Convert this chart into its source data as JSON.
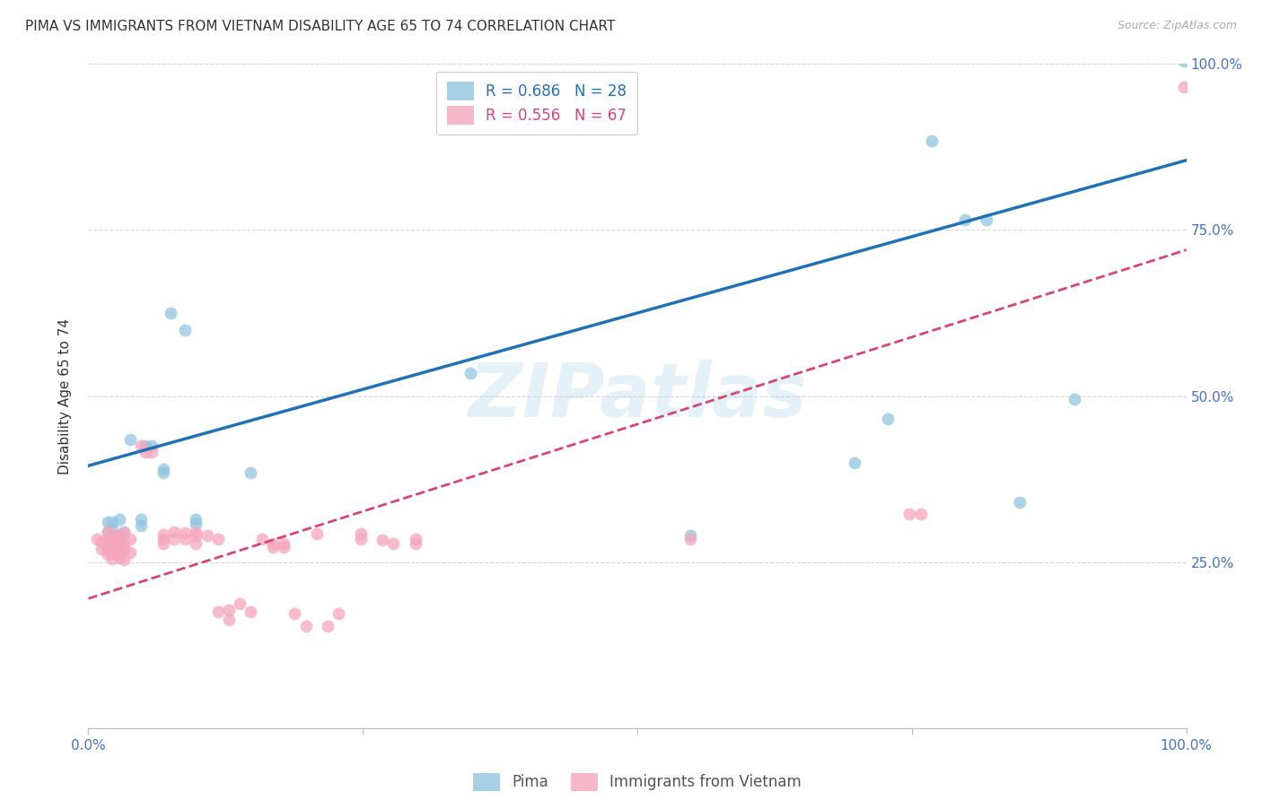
{
  "title": "PIMA VS IMMIGRANTS FROM VIETNAM DISABILITY AGE 65 TO 74 CORRELATION CHART",
  "source": "Source: ZipAtlas.com",
  "ylabel": "Disability Age 65 to 74",
  "xlim": [
    0.0,
    1.0
  ],
  "ylim": [
    0.0,
    1.0
  ],
  "watermark": "ZIPatlas",
  "legend_blue_r": "R = 0.686",
  "legend_blue_n": "N = 28",
  "legend_pink_r": "R = 0.556",
  "legend_pink_n": "N = 67",
  "pima_color": "#92c5de",
  "vietnam_color": "#f4a6bc",
  "pima_line_color": "#2171b5",
  "vietnam_line_color": "#d6457a",
  "pima_line": {
    "x0": 0.0,
    "y0": 0.395,
    "x1": 1.0,
    "y1": 0.855
  },
  "vietnam_line": {
    "x0": 0.0,
    "y0": 0.195,
    "x1": 1.0,
    "y1": 0.72
  },
  "pima_scatter": [
    [
      0.018,
      0.31
    ],
    [
      0.018,
      0.295
    ],
    [
      0.022,
      0.31
    ],
    [
      0.022,
      0.3
    ],
    [
      0.028,
      0.315
    ],
    [
      0.032,
      0.295
    ],
    [
      0.038,
      0.435
    ],
    [
      0.048,
      0.315
    ],
    [
      0.048,
      0.305
    ],
    [
      0.052,
      0.425
    ],
    [
      0.058,
      0.425
    ],
    [
      0.068,
      0.39
    ],
    [
      0.068,
      0.385
    ],
    [
      0.075,
      0.625
    ],
    [
      0.088,
      0.6
    ],
    [
      0.098,
      0.315
    ],
    [
      0.098,
      0.308
    ],
    [
      0.148,
      0.385
    ],
    [
      0.348,
      0.535
    ],
    [
      0.548,
      0.29
    ],
    [
      0.698,
      0.4
    ],
    [
      0.728,
      0.465
    ],
    [
      0.768,
      0.885
    ],
    [
      0.798,
      0.765
    ],
    [
      0.818,
      0.765
    ],
    [
      0.848,
      0.34
    ],
    [
      0.898,
      0.495
    ],
    [
      0.998,
      1.005
    ]
  ],
  "vietnam_scatter": [
    [
      0.008,
      0.285
    ],
    [
      0.012,
      0.28
    ],
    [
      0.012,
      0.27
    ],
    [
      0.018,
      0.295
    ],
    [
      0.018,
      0.285
    ],
    [
      0.018,
      0.278
    ],
    [
      0.018,
      0.272
    ],
    [
      0.018,
      0.268
    ],
    [
      0.018,
      0.262
    ],
    [
      0.022,
      0.292
    ],
    [
      0.022,
      0.285
    ],
    [
      0.022,
      0.278
    ],
    [
      0.022,
      0.272
    ],
    [
      0.022,
      0.263
    ],
    [
      0.022,
      0.255
    ],
    [
      0.028,
      0.29
    ],
    [
      0.028,
      0.284
    ],
    [
      0.028,
      0.278
    ],
    [
      0.028,
      0.272
    ],
    [
      0.028,
      0.264
    ],
    [
      0.028,
      0.256
    ],
    [
      0.032,
      0.294
    ],
    [
      0.032,
      0.278
    ],
    [
      0.032,
      0.268
    ],
    [
      0.032,
      0.254
    ],
    [
      0.038,
      0.284
    ],
    [
      0.038,
      0.264
    ],
    [
      0.048,
      0.425
    ],
    [
      0.052,
      0.415
    ],
    [
      0.058,
      0.415
    ],
    [
      0.068,
      0.292
    ],
    [
      0.068,
      0.285
    ],
    [
      0.068,
      0.278
    ],
    [
      0.078,
      0.295
    ],
    [
      0.078,
      0.284
    ],
    [
      0.088,
      0.294
    ],
    [
      0.088,
      0.284
    ],
    [
      0.098,
      0.295
    ],
    [
      0.098,
      0.29
    ],
    [
      0.098,
      0.278
    ],
    [
      0.108,
      0.29
    ],
    [
      0.118,
      0.284
    ],
    [
      0.118,
      0.175
    ],
    [
      0.128,
      0.178
    ],
    [
      0.128,
      0.163
    ],
    [
      0.138,
      0.188
    ],
    [
      0.148,
      0.175
    ],
    [
      0.158,
      0.284
    ],
    [
      0.168,
      0.278
    ],
    [
      0.168,
      0.273
    ],
    [
      0.178,
      0.278
    ],
    [
      0.178,
      0.273
    ],
    [
      0.188,
      0.173
    ],
    [
      0.198,
      0.153
    ],
    [
      0.208,
      0.293
    ],
    [
      0.218,
      0.153
    ],
    [
      0.228,
      0.173
    ],
    [
      0.248,
      0.293
    ],
    [
      0.248,
      0.284
    ],
    [
      0.268,
      0.283
    ],
    [
      0.278,
      0.278
    ],
    [
      0.298,
      0.284
    ],
    [
      0.298,
      0.278
    ],
    [
      0.548,
      0.285
    ],
    [
      0.748,
      0.322
    ],
    [
      0.758,
      0.322
    ],
    [
      0.998,
      0.965
    ]
  ],
  "background_color": "#ffffff",
  "grid_color": "#cccccc"
}
